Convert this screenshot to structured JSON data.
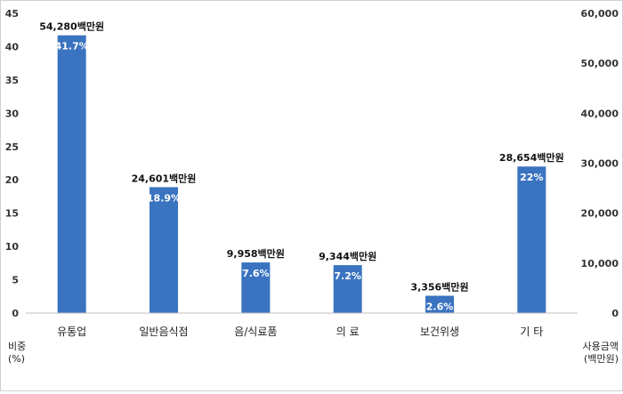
{
  "chart_data": {
    "type": "bar",
    "categories": [
      "유통업",
      "일반음식점",
      "음/식료품",
      "의 료",
      "보건위생",
      "기 타"
    ],
    "series": [
      {
        "values": [
          41.7,
          18.9,
          7.6,
          7.2,
          2.6,
          22
        ],
        "labels": [
          "41.7%",
          "18.9%",
          "7.6%",
          "7.2%",
          "2.6%",
          "22%"
        ]
      }
    ],
    "amounts": [
      54280,
      24601,
      9958,
      9344,
      3356,
      28654
    ],
    "amount_labels": [
      "54,280백만원",
      "24,601백만원",
      "9,958백만원",
      "9,344백만원",
      "3,356백만원",
      "28,654백만원"
    ],
    "left_axis": {
      "title_lines": [
        "비중",
        "(%)"
      ],
      "range": [
        0,
        45
      ],
      "ticks": [
        "0",
        "5",
        "10",
        "15",
        "20",
        "25",
        "30",
        "35",
        "40",
        "45"
      ]
    },
    "right_axis": {
      "title_lines": [
        "사용금액",
        "(백만원)"
      ],
      "range": [
        0,
        60000
      ],
      "ticks": [
        "0",
        "10,000",
        "20,000",
        "30,000",
        "40,000",
        "50,000",
        "60,000"
      ]
    },
    "grid": false,
    "bar_color": "#3a73c0"
  }
}
